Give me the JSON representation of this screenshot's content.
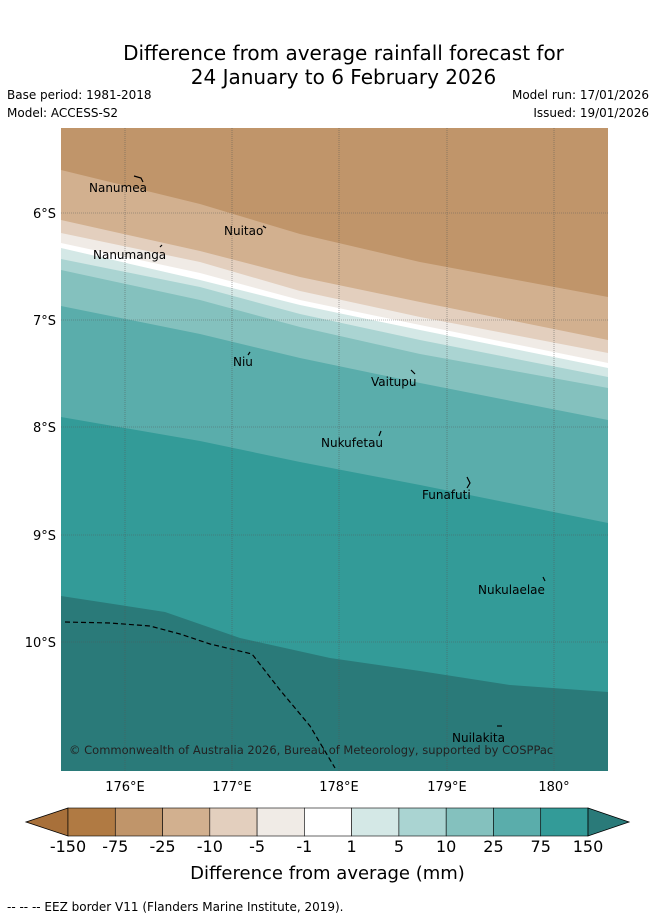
{
  "title": {
    "line1": "Difference from average rainfall forecast for",
    "line2": "24 January to 6 February 2026"
  },
  "meta": {
    "base_period": "Base period: 1981-2018",
    "model": "Model: ACCESS-S2",
    "model_run": "Model run: 17/01/2026",
    "issued": "Issued: 19/01/2026"
  },
  "map": {
    "lat_labels": [
      "6°S",
      "7°S",
      "8°S",
      "9°S",
      "10°S"
    ],
    "lon_labels": [
      "176°E",
      "177°E",
      "178°E",
      "179°E",
      "180°"
    ],
    "places": [
      {
        "name": "Nanumea"
      },
      {
        "name": "Nuitao"
      },
      {
        "name": "Nanumanga"
      },
      {
        "name": "Niu"
      },
      {
        "name": "Vaitupu"
      },
      {
        "name": "Nukufetau"
      },
      {
        "name": "Funafuti"
      },
      {
        "name": "Nukulaelae"
      },
      {
        "name": "Nuilakita"
      }
    ],
    "copyright": "© Commonwealth of Australia 2026, Bureau of Meteorology, supported by COSPPac"
  },
  "legend": {
    "ticks": [
      "-150",
      "-75",
      "-25",
      "-10",
      "-5",
      "-1",
      "1",
      "5",
      "10",
      "25",
      "75",
      "150"
    ],
    "colors": [
      "#a8703a",
      "#b07a43",
      "#c0956a",
      "#d2b08f",
      "#e3cfbe",
      "#f0ebe6",
      "#ffffff",
      "#d4e8e6",
      "#aad4d2",
      "#84c1be",
      "#5aadab",
      "#339b98",
      "#2a7a79"
    ],
    "label": "Difference from average (mm)"
  },
  "footnote": "--  --  -- EEZ border V11 (Flanders Marine Institute, 2019)."
}
